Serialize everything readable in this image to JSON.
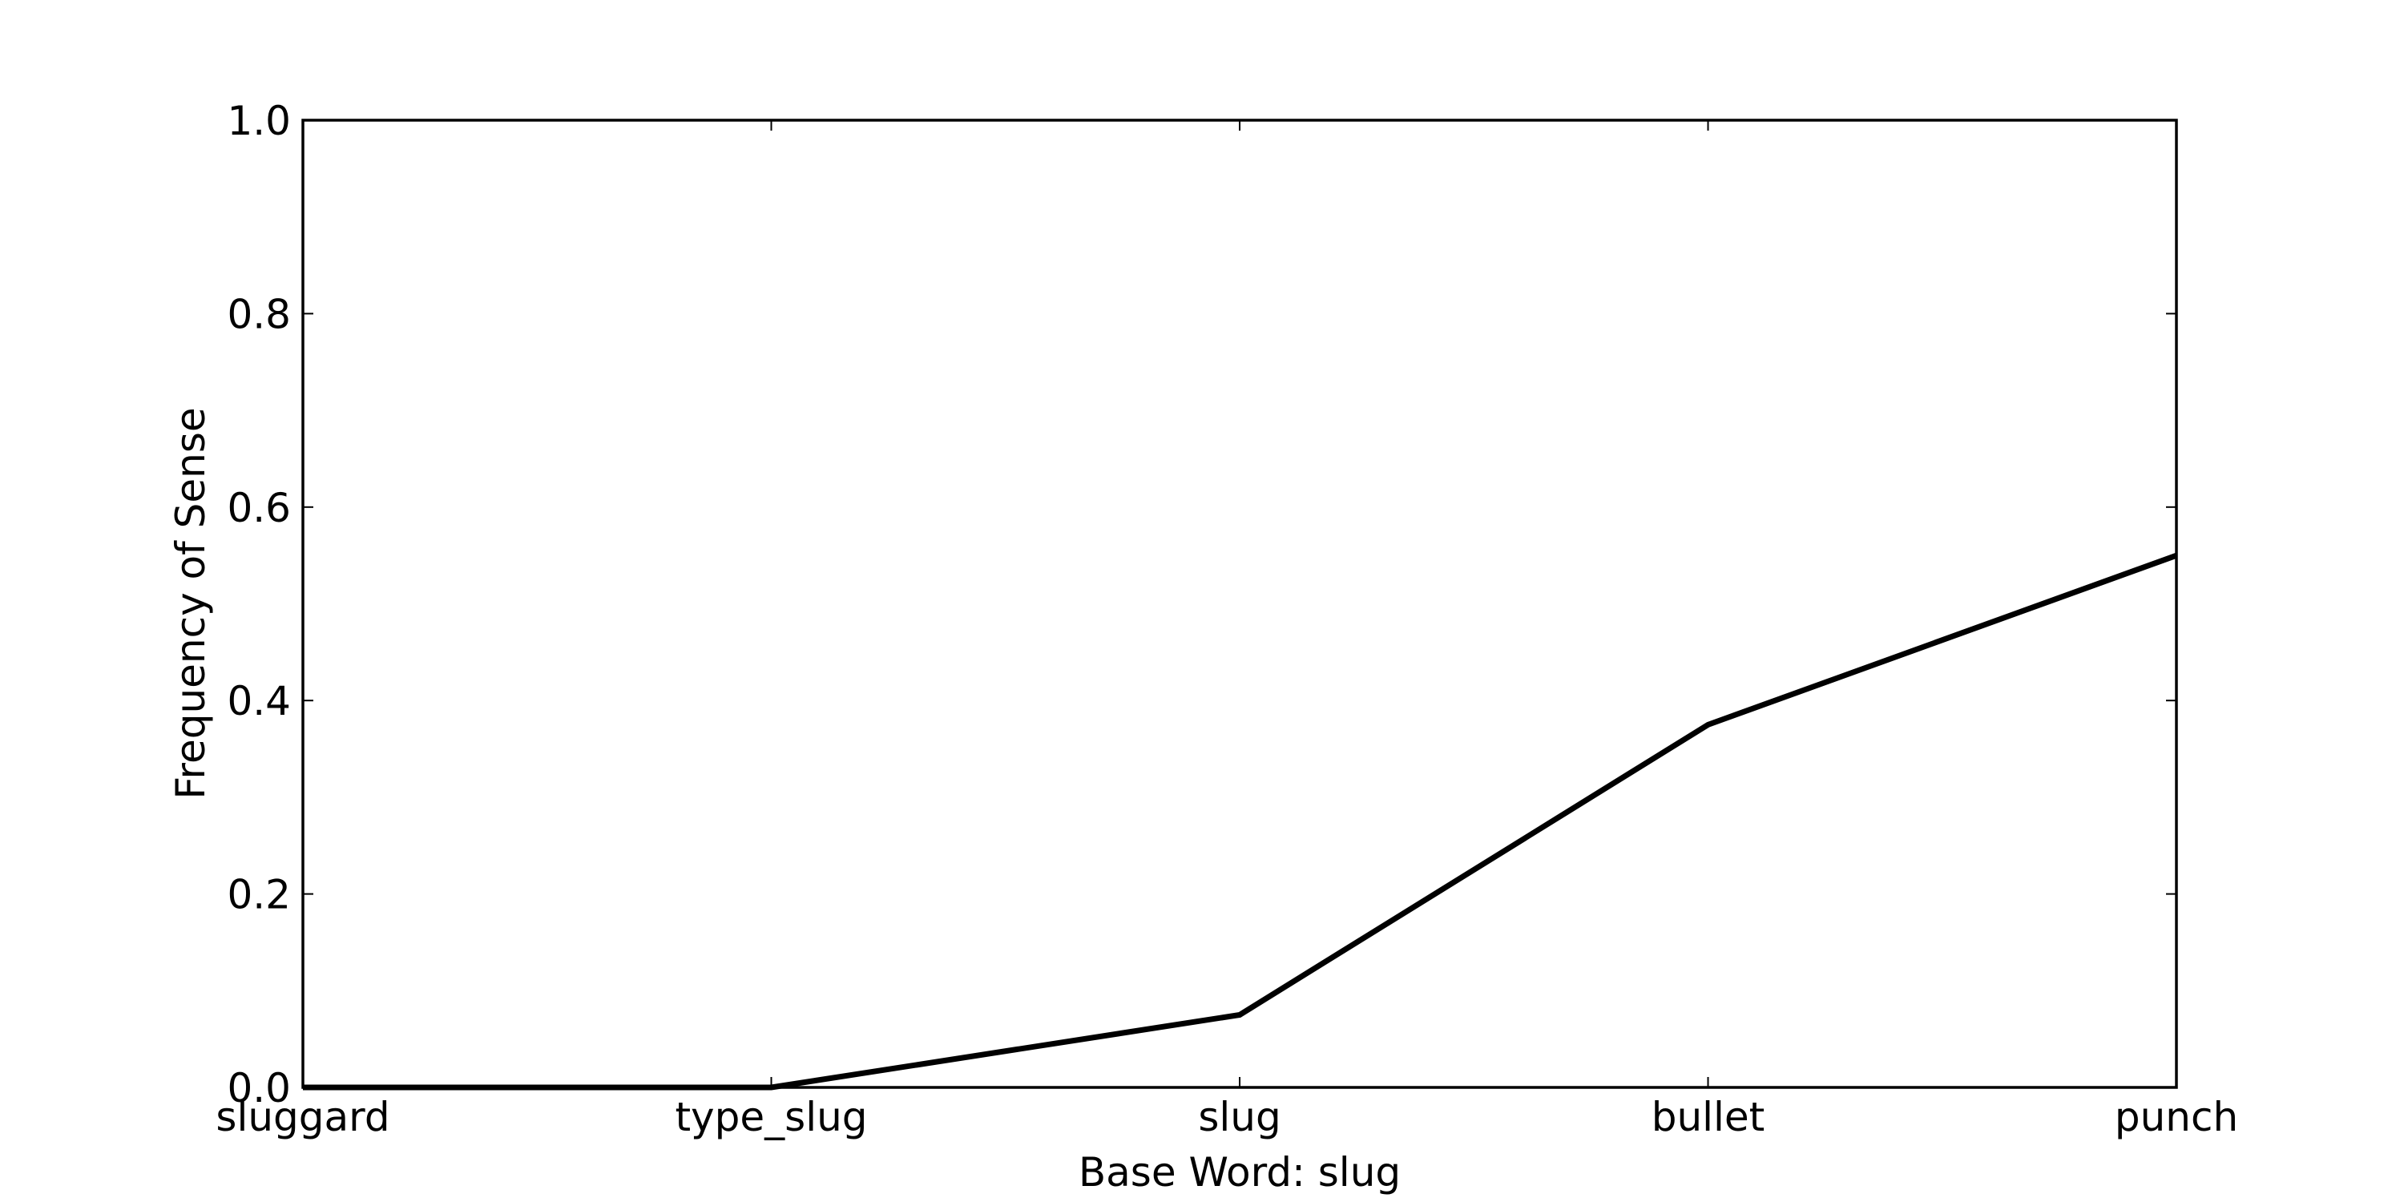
{
  "chart_data": {
    "type": "line",
    "title": "",
    "xlabel": "Base Word: slug",
    "ylabel": "Frequency of Sense",
    "categories": [
      "sluggard",
      "type_slug",
      "slug",
      "bullet",
      "punch"
    ],
    "series": [
      {
        "values": [
          0.0,
          0.0,
          0.075,
          0.375,
          0.55
        ],
        "color": "#000000"
      }
    ],
    "ylim": [
      0.0,
      1.0
    ],
    "yticks": [
      "0.0",
      "0.2",
      "0.4",
      "0.6",
      "0.8",
      "1.0"
    ],
    "grid": false,
    "legend": "none"
  }
}
